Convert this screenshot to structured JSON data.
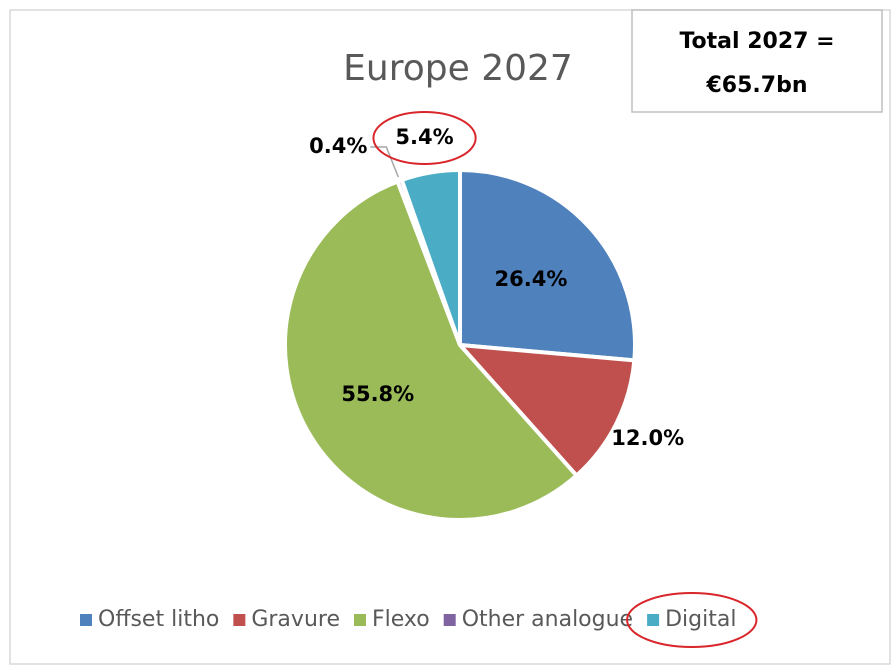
{
  "chart_data": {
    "type": "pie",
    "title": "Europe 2027",
    "annotation": [
      "Total 2027 =",
      "€65.7bn"
    ],
    "categories": [
      "Offset litho",
      "Gravure",
      "Flexo",
      "Other analogue",
      "Digital"
    ],
    "values": [
      26.4,
      12.0,
      55.8,
      0.4,
      5.4
    ],
    "value_labels": [
      "26.4%",
      "12.0%",
      "55.8%",
      "0.4%",
      "5.4%"
    ],
    "colors": [
      "#4f81bd",
      "#c0504d",
      "#9bbb59",
      "#8064a2",
      "#4bacc6"
    ],
    "legend": "bottom"
  }
}
